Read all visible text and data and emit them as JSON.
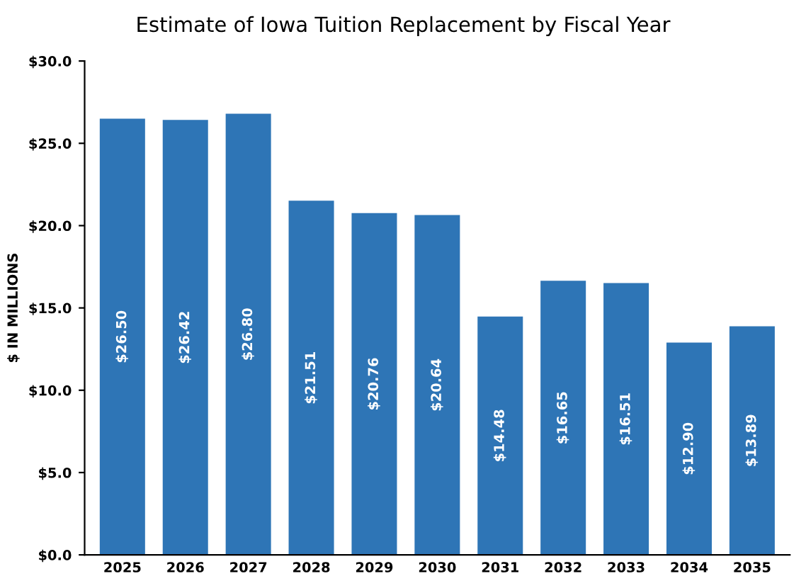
{
  "chart_data": {
    "type": "bar",
    "title": "Estimate of Iowa Tuition Replacement by Fiscal Year",
    "ylabel": "$ IN MILLIONS",
    "categories": [
      "2025",
      "2026",
      "2027",
      "2028",
      "2029",
      "2030",
      "2031",
      "2032",
      "2033",
      "2034",
      "2035"
    ],
    "values": [
      26.5,
      26.42,
      26.8,
      21.51,
      20.76,
      20.64,
      14.48,
      16.65,
      16.51,
      12.9,
      13.89
    ],
    "value_labels": [
      "$26.50",
      "$26.42",
      "$26.80",
      "$21.51",
      "$20.76",
      "$20.64",
      "$14.48",
      "$16.65",
      "$16.51",
      "$12.90",
      "$13.89"
    ],
    "color": "#2e75b6",
    "ylim": [
      0,
      30
    ],
    "yticks": [
      {
        "value": 0,
        "label": "$0.0"
      },
      {
        "value": 5,
        "label": "$5.0"
      },
      {
        "value": 10,
        "label": "$10.0"
      },
      {
        "value": 15,
        "label": "$15.0"
      },
      {
        "value": 20,
        "label": "$20.0"
      },
      {
        "value": 25,
        "label": "$25.0"
      },
      {
        "value": 30,
        "label": "$30.0"
      }
    ],
    "grid": false,
    "legend": false
  }
}
